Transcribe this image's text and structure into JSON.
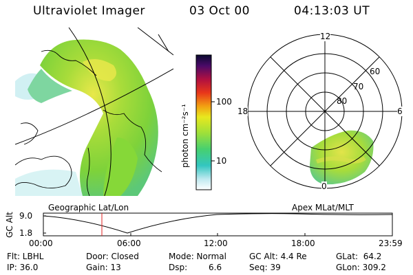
{
  "header": {
    "instrument": "Ultraviolet Imager",
    "date": "03 Oct 00",
    "time": "04:13:03 UT"
  },
  "colorbar": {
    "unit_label": "photon cm⁻²s⁻¹",
    "ticks": [
      "100",
      "10"
    ]
  },
  "polar_plot": {
    "mlt_labels": [
      "12",
      "18",
      "6",
      "0"
    ],
    "lat_labels": [
      "60",
      "70",
      "80"
    ]
  },
  "timeline": {
    "left_caption": "Geographic Lat/Lon",
    "right_caption": "Apex MLat/MLT",
    "yaxis_title": "GC Alt",
    "y_ticks": [
      "9.0",
      "1.8"
    ],
    "x_ticks": [
      "00:00",
      "06:00",
      "12:00",
      "18:00",
      "23:59"
    ],
    "current_time_marker": "04:13"
  },
  "status": {
    "flt": "Flt: LBHL",
    "ip": "IP: 36.0",
    "door": "Door: Closed",
    "gain": "Gain: 13",
    "mode": "Mode: Normal",
    "dsp_label": "Dsp:",
    "dsp_value": "6.6",
    "gc_alt": "GC Alt: 4.4 Re",
    "seq": "Seq: 39",
    "glat": "GLat:  64.2",
    "glon": "GLon: 309.2"
  },
  "colors": {
    "auroral_low": "#9ee0d6",
    "auroral_mid": "#7ed23a",
    "auroral_high": "#e8e84a",
    "marker": "#e02020"
  }
}
